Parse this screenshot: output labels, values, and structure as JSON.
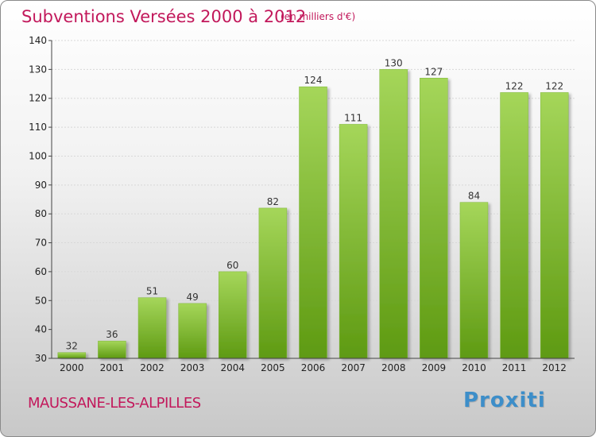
{
  "header": {
    "title": "Subventions Versées 2000 à 2012",
    "unit_note": "(en milliers d'€)"
  },
  "footer": {
    "commune": "MAUSSANE-LES-ALPILLES",
    "brand": "Proxiti"
  },
  "colors": {
    "title": "#c2185b",
    "bar_top": "#a5d65a",
    "bar_bottom": "#5e9a12",
    "brand": "#3d8ec9"
  },
  "chart_data": {
    "type": "bar",
    "categories": [
      "2000",
      "2001",
      "2002",
      "2003",
      "2004",
      "2005",
      "2006",
      "2007",
      "2008",
      "2009",
      "2010",
      "2011",
      "2012"
    ],
    "values": [
      32,
      36,
      51,
      49,
      60,
      82,
      124,
      111,
      130,
      127,
      84,
      122,
      122
    ],
    "title": "Subventions Versées 2000 à 2012",
    "xlabel": "",
    "ylabel": "",
    "ylim": [
      30,
      140
    ],
    "yticks": [
      30,
      40,
      50,
      60,
      70,
      80,
      90,
      100,
      110,
      120,
      130,
      140
    ],
    "grid": true,
    "data_labels": true
  }
}
